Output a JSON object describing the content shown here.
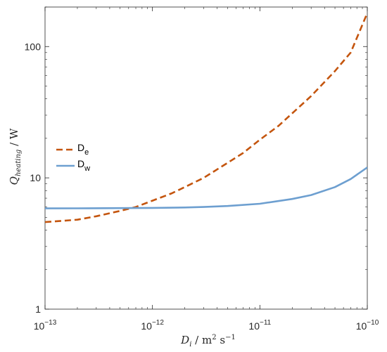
{
  "chart_data": {
    "type": "line",
    "x_scale": "log",
    "y_scale": "log",
    "xlim": [
      1e-13,
      1e-10
    ],
    "ylim": [
      1,
      200
    ],
    "x_ticks": [
      {
        "value": 1e-13,
        "base": "10",
        "exp": "−13"
      },
      {
        "value": 1e-12,
        "base": "10",
        "exp": "−12"
      },
      {
        "value": 1e-11,
        "base": "10",
        "exp": "−11"
      },
      {
        "value": 1e-10,
        "base": "10",
        "exp": "−10"
      }
    ],
    "y_ticks": [
      {
        "value": 1,
        "label": "1"
      },
      {
        "value": 10,
        "label": "10"
      },
      {
        "value": 100,
        "label": "100"
      }
    ],
    "xlabel": {
      "sym": "D",
      "sub": "i",
      "unit": " / m",
      "sup1": "2",
      "unit2": " s",
      "sup2": "−1"
    },
    "ylabel": {
      "sym": "Q",
      "sub": "heating",
      "unit": " / W"
    },
    "grid": false,
    "legend_position": "left",
    "series": [
      {
        "name": "D",
        "name_sub": "e",
        "color": "#c4550e",
        "dash": "dashed",
        "x": [
          1e-13,
          2e-13,
          3e-13,
          5e-13,
          7e-13,
          1e-12,
          1.5e-12,
          2e-12,
          3e-12,
          5e-12,
          7e-12,
          1e-11,
          1.5e-11,
          2e-11,
          3e-11,
          5e-11,
          7e-11,
          1e-10
        ],
        "y": [
          4.6,
          4.8,
          5.1,
          5.6,
          6.0,
          6.7,
          7.6,
          8.5,
          10.0,
          13.0,
          15.5,
          19.5,
          25,
          31,
          42,
          65,
          90,
          180
        ]
      },
      {
        "name": "D",
        "name_sub": "w",
        "color": "#6d9fd0",
        "dash": "solid",
        "x": [
          1e-13,
          2e-13,
          5e-13,
          1e-12,
          2e-12,
          3e-12,
          5e-12,
          1e-11,
          2e-11,
          3e-11,
          5e-11,
          7e-11,
          1e-10
        ],
        "y": [
          5.85,
          5.86,
          5.88,
          5.9,
          5.95,
          6.0,
          6.1,
          6.35,
          6.9,
          7.4,
          8.5,
          9.8,
          12.0
        ]
      }
    ]
  }
}
